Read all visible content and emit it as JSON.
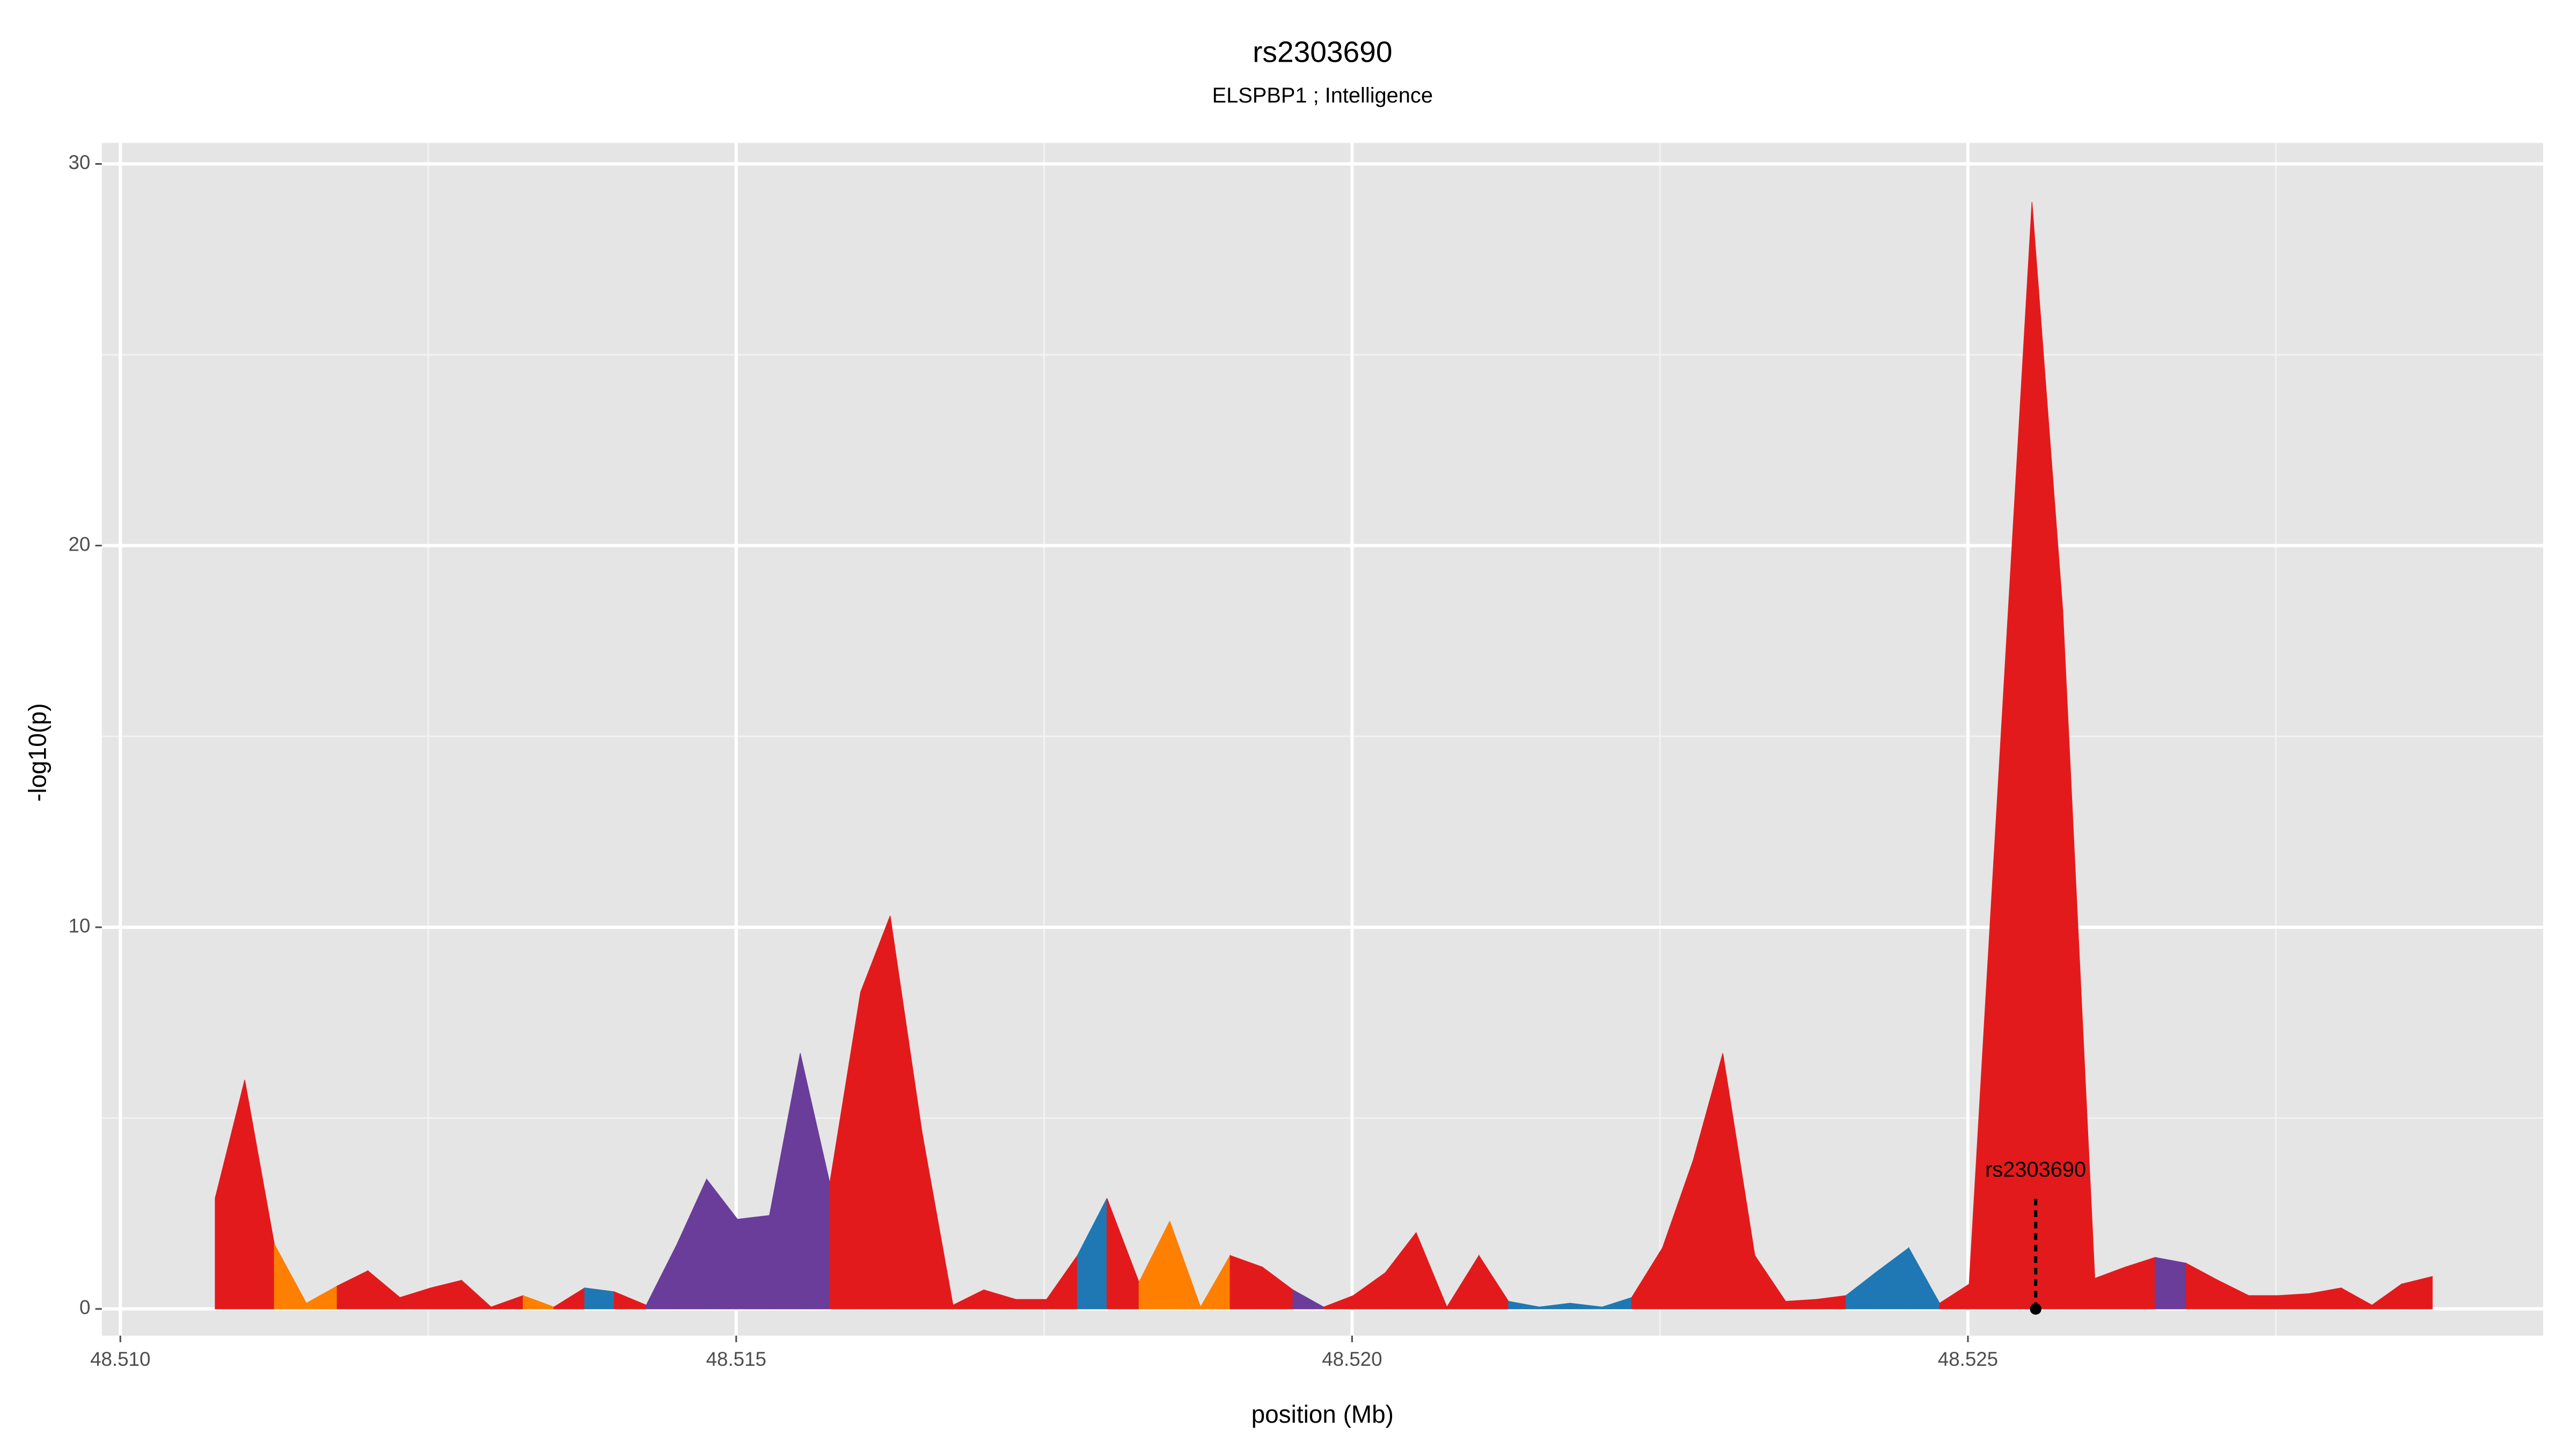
{
  "chart_data": {
    "type": "area",
    "title": "rs2303690",
    "subtitle": "ELSPBP1 ; Intelligence",
    "x_label": "position (Mb)",
    "y_label": "-log10(p)",
    "x": [
      48.51077,
      48.51101,
      48.51125,
      48.51151,
      48.51176,
      48.51201,
      48.51227,
      48.51252,
      48.51277,
      48.51301,
      48.51327,
      48.51352,
      48.51377,
      48.51401,
      48.51427,
      48.51452,
      48.51476,
      48.51501,
      48.51527,
      48.51552,
      48.51576,
      48.51601,
      48.51625,
      48.51651,
      48.51676,
      48.51701,
      48.51727,
      48.51752,
      48.51777,
      48.51801,
      48.51827,
      48.51852,
      48.51877,
      48.51901,
      48.51927,
      48.51952,
      48.51977,
      48.52001,
      48.52027,
      48.52052,
      48.52077,
      48.52103,
      48.52127,
      48.52152,
      48.52177,
      48.52203,
      48.52227,
      48.52252,
      48.52277,
      48.52301,
      48.52327,
      48.52352,
      48.52377,
      48.52401,
      48.52427,
      48.52452,
      48.52477,
      48.52501,
      48.52552,
      48.52577,
      48.52603,
      48.52628,
      48.52652,
      48.52677,
      48.52703,
      48.52728,
      48.52752,
      48.52777,
      48.52803,
      48.52828,
      48.52852,
      48.52877
    ],
    "values": [
      2.9,
      6.0,
      1.7,
      0.15,
      0.6,
      1.0,
      0.3,
      0.55,
      0.75,
      0.05,
      0.35,
      0.05,
      0.55,
      0.45,
      0.1,
      1.7,
      3.4,
      2.35,
      2.45,
      6.7,
      3.3,
      8.3,
      10.3,
      4.6,
      0.1,
      0.5,
      0.25,
      0.25,
      1.4,
      2.9,
      0.7,
      2.3,
      0.05,
      1.4,
      1.1,
      0.5,
      0.05,
      0.35,
      0.95,
      2.0,
      0.05,
      1.4,
      0.2,
      0.05,
      0.15,
      0.05,
      0.3,
      1.6,
      3.9,
      6.7,
      1.4,
      0.2,
      0.25,
      0.35,
      1.0,
      1.6,
      0.15,
      0.65,
      29.0,
      18.3,
      0.8,
      1.1,
      1.35,
      1.2,
      0.75,
      0.35,
      0.35,
      0.4,
      0.55,
      0.1,
      0.65,
      0.85
    ],
    "segment_colors": [
      "#e31a1c",
      "#e31a1c",
      "#ff7f00",
      "#ff7f00",
      "#e31a1c",
      "#e31a1c",
      "#e31a1c",
      "#e31a1c",
      "#e31a1c",
      "#e31a1c",
      "#ff7f00",
      "#e31a1c",
      "#1f78b4",
      "#e31a1c",
      "#6a3d9a",
      "#6a3d9a",
      "#6a3d9a",
      "#6a3d9a",
      "#6a3d9a",
      "#6a3d9a",
      "#e31a1c",
      "#e31a1c",
      "#e31a1c",
      "#e31a1c",
      "#e31a1c",
      "#e31a1c",
      "#e31a1c",
      "#e31a1c",
      "#1f78b4",
      "#e31a1c",
      "#ff7f00",
      "#ff7f00",
      "#ff7f00",
      "#e31a1c",
      "#e31a1c",
      "#6a3d9a",
      "#e31a1c",
      "#e31a1c",
      "#e31a1c",
      "#e31a1c",
      "#e31a1c",
      "#e31a1c",
      "#1f78b4",
      "#1f78b4",
      "#1f78b4",
      "#1f78b4",
      "#e31a1c",
      "#e31a1c",
      "#e31a1c",
      "#e31a1c",
      "#e31a1c",
      "#e31a1c",
      "#e31a1c",
      "#1f78b4",
      "#1f78b4",
      "#1f78b4",
      "#e31a1c",
      "#e31a1c",
      "#e31a1c",
      "#e31a1c",
      "#e31a1c",
      "#e31a1c",
      "#6a3d9a",
      "#e31a1c",
      "#e31a1c",
      "#e31a1c",
      "#e31a1c",
      "#e31a1c",
      "#e31a1c",
      "#e31a1c",
      "#e31a1c"
    ],
    "annotation": {
      "text": "rs2303690",
      "x": 48.52555,
      "y": 0
    },
    "xlim": [
      48.50985,
      48.52967
    ],
    "xticks": [
      {
        "value": 48.51,
        "label": "48.510"
      },
      48.515,
      {
        "value": 48.52,
        "label": "48.520"
      },
      48.525
    ],
    "ylim": [
      -0.7,
      30.55
    ],
    "yticks": [
      0,
      10,
      20,
      30
    ],
    "grid": true,
    "panel_color": "#e5e5e5"
  }
}
